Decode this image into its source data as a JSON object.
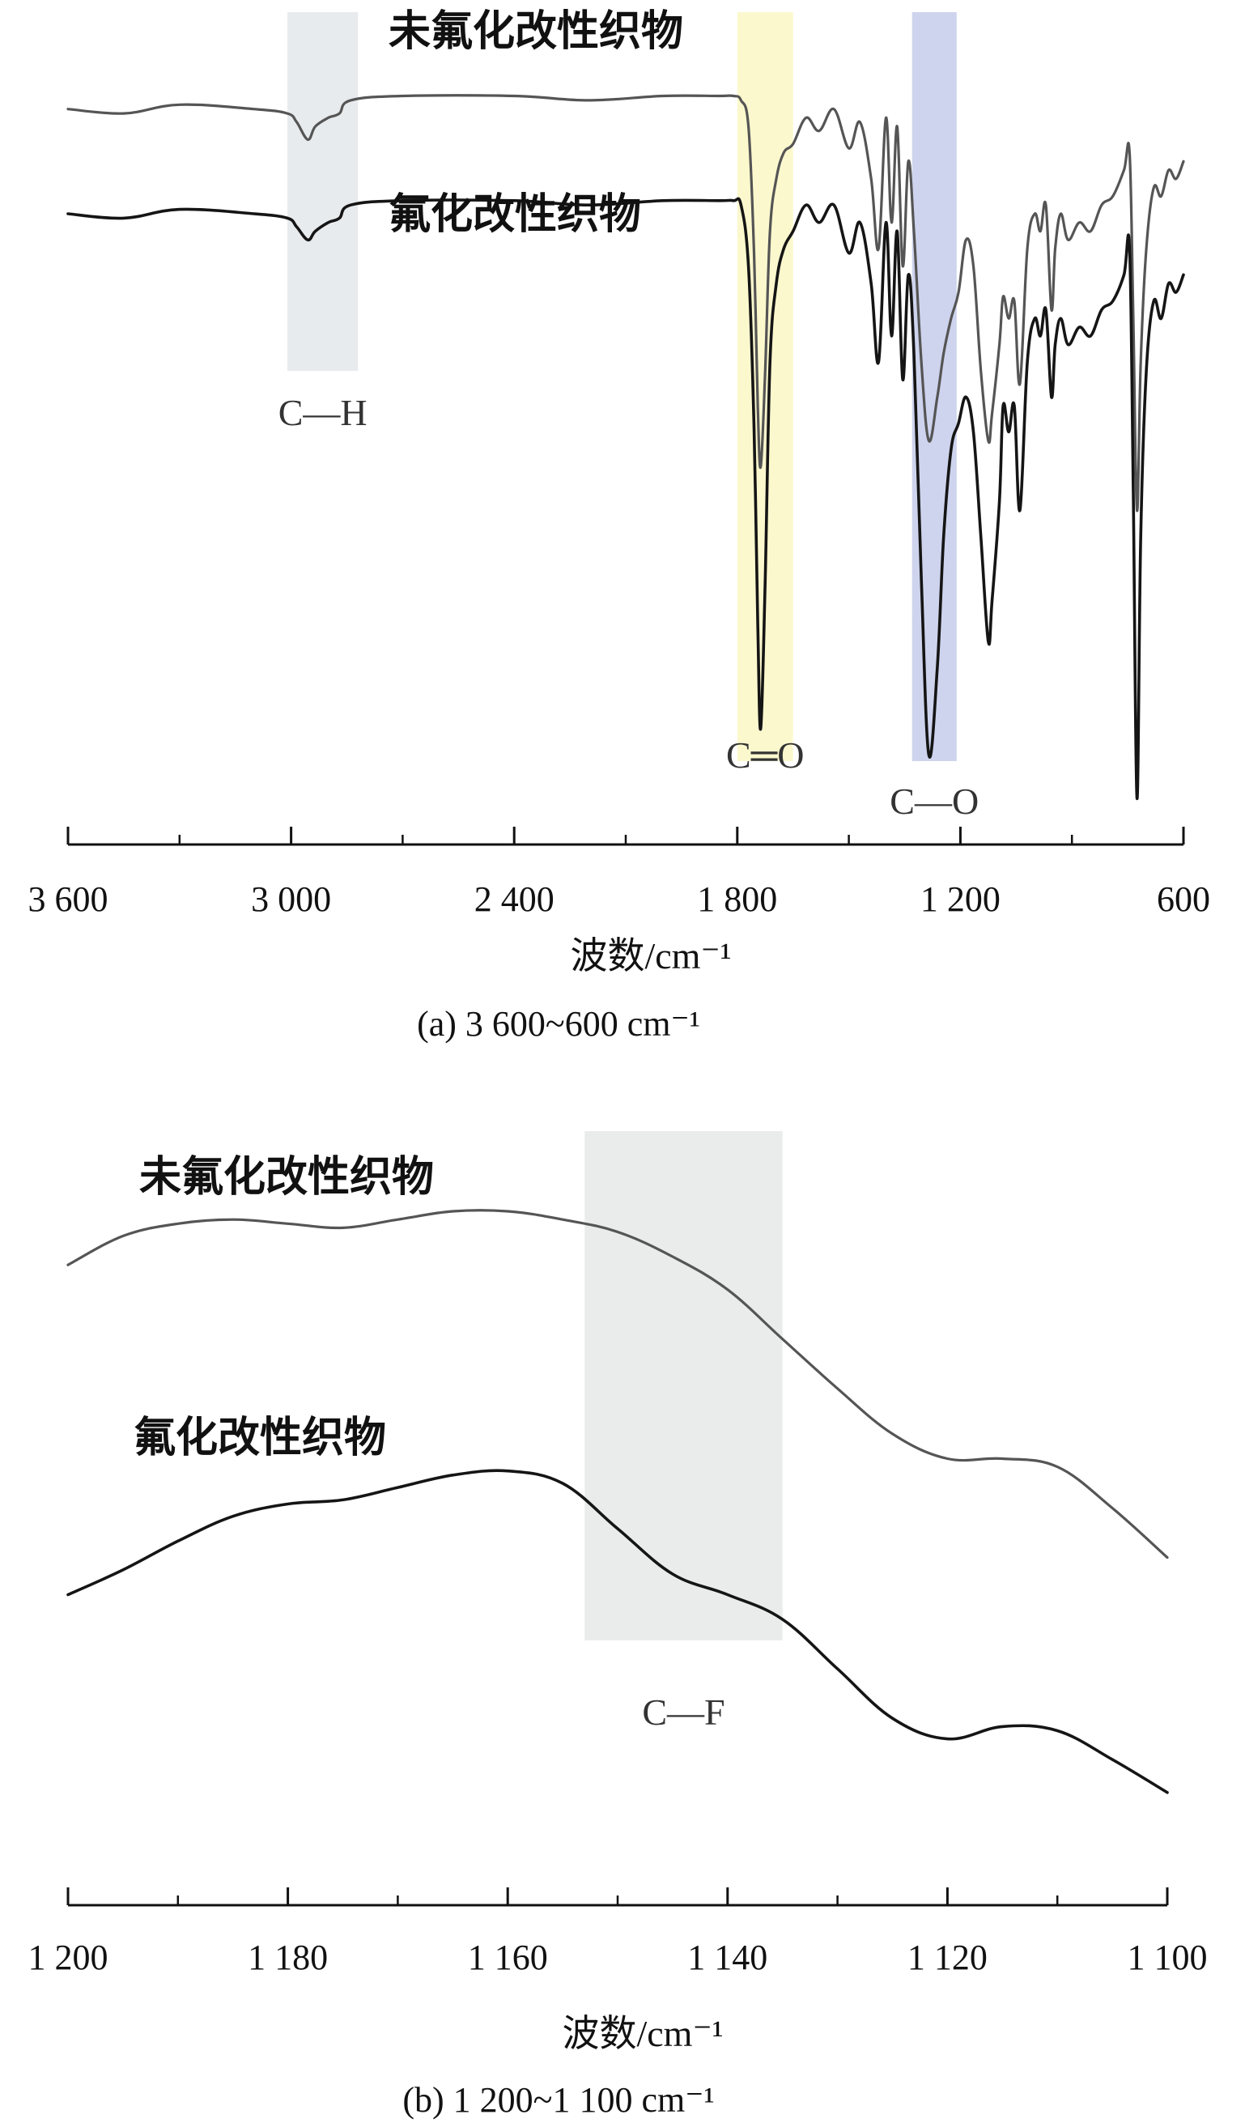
{
  "chart_data": [
    {
      "type": "line",
      "subplot": "a",
      "caption": "(a) 3 600~600 cm⁻¹",
      "xlabel": "波数/cm⁻¹",
      "ylabel": "",
      "xlim": [
        3600,
        600
      ],
      "x_reversed": true,
      "tick_values": [
        3600,
        3000,
        2400,
        1800,
        1200,
        600
      ],
      "tick_labels": [
        "3 600",
        "3 000",
        "2 400",
        "1 800",
        "1 200",
        "600"
      ],
      "minor_tick_values": [
        3300,
        2700,
        2100,
        1500,
        900
      ],
      "grid": false,
      "y_units": "relative transmittance (arbitrary, curves vertically offset)",
      "bands": [
        {
          "label": "C—H",
          "range": [
            3010,
            2820
          ],
          "color": "#e4e7eb"
        },
        {
          "label": "C═O",
          "range": [
            1800,
            1650
          ],
          "color": "#fbf7c5"
        },
        {
          "label": "C—O",
          "range": [
            1330,
            1210
          ],
          "color": "#c5cdea"
        }
      ],
      "series": [
        {
          "name": "未氟化改性织物",
          "color": "#555555",
          "x": [
            3600,
            3450,
            3300,
            3100,
            3010,
            2985,
            2955,
            2935,
            2900,
            2870,
            2840,
            2700,
            2400,
            2200,
            2000,
            1850,
            1810,
            1790,
            1770,
            1755,
            1745,
            1737,
            1725,
            1712,
            1695,
            1675,
            1650,
            1615,
            1580,
            1540,
            1500,
            1470,
            1440,
            1420,
            1400,
            1385,
            1370,
            1355,
            1340,
            1325,
            1305,
            1285,
            1262,
            1245,
            1225,
            1205,
            1185,
            1165,
            1145,
            1125,
            1115,
            1095,
            1085,
            1070,
            1055,
            1040,
            1020,
            1000,
            985,
            970,
            955,
            945,
            930,
            910,
            880,
            850,
            820,
            790,
            760,
            745,
            735,
            725,
            715,
            700,
            680,
            660,
            640,
            620,
            600
          ],
          "y": [
            88,
            87,
            89,
            88,
            87,
            85,
            81,
            84,
            86,
            87,
            90,
            91,
            91,
            90,
            91,
            91,
            91,
            90,
            84,
            55,
            20,
            6,
            28,
            60,
            72,
            78,
            80,
            86,
            83,
            88,
            79,
            85,
            72,
            56,
            86,
            62,
            84,
            52,
            76,
            60,
            30,
            12,
            22,
            32,
            40,
            46,
            58,
            52,
            28,
            12,
            18,
            34,
            45,
            40,
            44,
            25,
            56,
            64,
            60,
            66,
            42,
            56,
            64,
            58,
            62,
            60,
            66,
            68,
            74,
            78,
            40,
            -4,
            30,
            56,
            70,
            68,
            74,
            72,
            76
          ]
        },
        {
          "name": "氟化改性织物",
          "color": "#151515",
          "x": [
            3600,
            3450,
            3300,
            3100,
            3010,
            2985,
            2955,
            2935,
            2900,
            2870,
            2840,
            2700,
            2400,
            2200,
            2000,
            1850,
            1810,
            1790,
            1770,
            1755,
            1745,
            1737,
            1725,
            1712,
            1695,
            1675,
            1650,
            1615,
            1580,
            1540,
            1500,
            1470,
            1440,
            1420,
            1400,
            1385,
            1370,
            1355,
            1340,
            1325,
            1305,
            1285,
            1262,
            1245,
            1225,
            1205,
            1185,
            1165,
            1145,
            1125,
            1115,
            1095,
            1085,
            1070,
            1055,
            1040,
            1020,
            1000,
            985,
            970,
            955,
            945,
            930,
            910,
            880,
            850,
            820,
            790,
            760,
            745,
            735,
            725,
            715,
            700,
            680,
            660,
            640,
            620,
            600
          ],
          "y": [
            64,
            63,
            65,
            64,
            63,
            61,
            58,
            60,
            62,
            63,
            66,
            67,
            67,
            66,
            67,
            67,
            67,
            66,
            52,
            15,
            -30,
            -54,
            -20,
            30,
            48,
            56,
            60,
            66,
            62,
            66,
            55,
            62,
            48,
            30,
            62,
            36,
            60,
            26,
            50,
            32,
            -20,
            -60,
            -40,
            -10,
            10,
            16,
            22,
            14,
            -10,
            -34,
            -25,
            -2,
            20,
            14,
            20,
            -4,
            30,
            40,
            36,
            42,
            22,
            34,
            40,
            34,
            38,
            36,
            42,
            44,
            50,
            56,
            0,
            -70,
            -10,
            28,
            44,
            40,
            48,
            46,
            50
          ]
        }
      ]
    },
    {
      "type": "line",
      "subplot": "b",
      "caption": "(b) 1 200~1 100 cm⁻¹",
      "xlabel": "波数/cm⁻¹",
      "ylabel": "",
      "xlim": [
        1200,
        1100
      ],
      "x_reversed": true,
      "tick_values": [
        1200,
        1180,
        1160,
        1140,
        1120,
        1100
      ],
      "tick_labels": [
        "1 200",
        "1 180",
        "1 160",
        "1 140",
        "1 120",
        "1 100"
      ],
      "minor_tick_values": [
        1190,
        1170,
        1150,
        1130,
        1110
      ],
      "grid": false,
      "y_units": "relative transmittance (arbitrary, curves vertically offset)",
      "bands": [
        {
          "label": "C—F",
          "range": [
            1153,
            1135
          ],
          "color": "#e6e7e8"
        }
      ],
      "series": [
        {
          "name": "未氟化改性织物",
          "color": "#555555",
          "x": [
            1200,
            1195,
            1190,
            1185,
            1180,
            1175,
            1170,
            1165,
            1160,
            1155,
            1150,
            1145,
            1140,
            1135,
            1130,
            1125,
            1120,
            1115,
            1110,
            1105,
            1100
          ],
          "y": [
            86,
            93,
            96,
            97,
            96,
            95,
            97,
            99,
            99,
            97,
            94,
            88,
            80,
            68,
            56,
            45,
            39,
            39,
            37,
            27,
            15
          ]
        },
        {
          "name": "氟化改性织物",
          "color": "#151515",
          "x": [
            1200,
            1195,
            1190,
            1185,
            1180,
            1175,
            1170,
            1165,
            1160,
            1155,
            1150,
            1145,
            1140,
            1135,
            1130,
            1125,
            1120,
            1115,
            1110,
            1105,
            1100
          ],
          "y": [
            6,
            12,
            19,
            25,
            28,
            29,
            32,
            35,
            36,
            33,
            22,
            11,
            6,
            0,
            -12,
            -24,
            -29,
            -26,
            -27,
            -34,
            -42
          ]
        }
      ]
    }
  ]
}
